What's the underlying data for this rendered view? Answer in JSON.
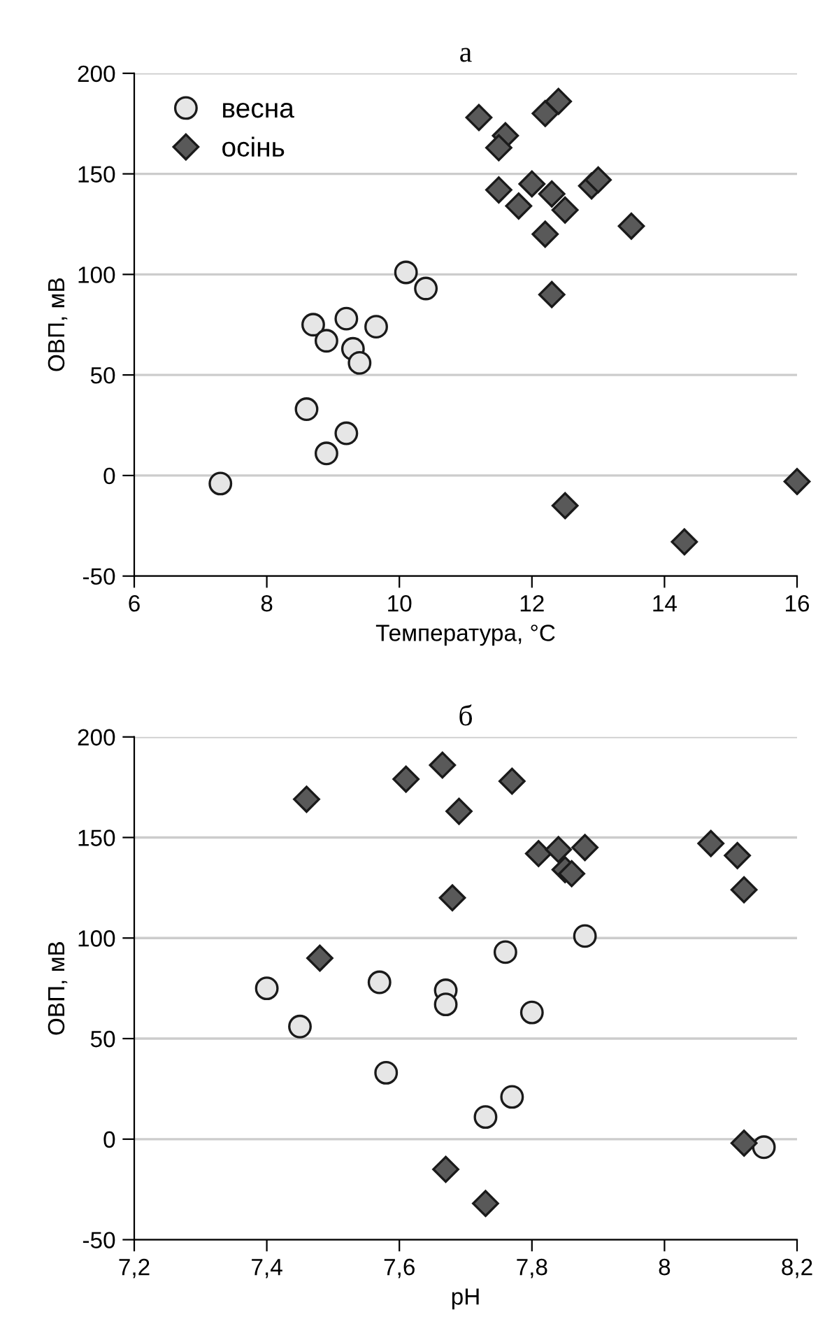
{
  "chart_data": [
    {
      "type": "scatter",
      "title": "а",
      "xlabel": "Температура, °C",
      "ylabel": "ОВП, мВ",
      "xlim": [
        6,
        16
      ],
      "xticks": [
        6,
        8,
        10,
        12,
        14,
        16
      ],
      "ylim": [
        -50,
        200
      ],
      "yticks": [
        -50,
        0,
        50,
        100,
        150,
        200
      ],
      "grid": "y",
      "legend": "top left",
      "series": [
        {
          "name": "весна",
          "color": "#e6e6e6",
          "marker": "circle",
          "x": [
            7.3,
            8.6,
            8.7,
            8.9,
            8.9,
            9.2,
            9.2,
            9.3,
            9.4,
            9.65,
            10.1,
            10.4
          ],
          "values": [
            -4,
            33,
            75,
            67,
            11,
            78,
            21,
            63,
            56,
            74,
            101,
            93
          ]
        },
        {
          "name": "осінь",
          "color": "#595959",
          "marker": "diamond",
          "x": [
            11.2,
            11.6,
            11.5,
            11.5,
            11.8,
            12.0,
            12.2,
            12.4,
            12.3,
            12.5,
            12.2,
            12.9,
            13.0,
            13.5,
            12.3,
            12.5,
            14.3,
            16.0
          ],
          "values": [
            178,
            169,
            163,
            142,
            134,
            145,
            180,
            186,
            140,
            132,
            120,
            144,
            147,
            124,
            90,
            -15,
            -33,
            -3
          ]
        }
      ]
    },
    {
      "type": "scatter",
      "title": "б",
      "xlabel": "pH",
      "ylabel": "ОВП, мВ",
      "xlim": [
        7.2,
        8.2
      ],
      "xticks": [
        {
          "value": 7.2,
          "label": "7,2"
        },
        {
          "value": 7.4,
          "label": "7,4"
        },
        {
          "value": 7.6,
          "label": "7,6"
        },
        {
          "value": 7.8,
          "label": "7,8"
        },
        {
          "value": 8,
          "label": "8"
        },
        {
          "value": 8.2,
          "label": "8,2"
        }
      ],
      "ylim": [
        -50,
        200
      ],
      "yticks": [
        -50,
        0,
        50,
        100,
        150,
        200
      ],
      "grid": "y",
      "series": [
        {
          "color": "#e6e6e6",
          "marker": "circle",
          "x": [
            7.4,
            7.45,
            7.57,
            7.58,
            7.67,
            7.67,
            7.73,
            7.76,
            7.77,
            7.8,
            7.88,
            8.15
          ],
          "values": [
            75,
            56,
            78,
            33,
            74,
            67,
            11,
            93,
            21,
            63,
            101,
            -4
          ]
        },
        {
          "color": "#595959",
          "marker": "diamond",
          "x": [
            7.46,
            7.48,
            7.61,
            7.665,
            7.69,
            7.68,
            7.77,
            7.67,
            7.73,
            7.81,
            7.84,
            7.85,
            7.86,
            7.88,
            8.07,
            8.11,
            8.12,
            8.12
          ],
          "values": [
            169,
            90,
            179,
            186,
            163,
            120,
            178,
            -15,
            -32,
            142,
            144,
            134,
            132,
            145,
            147,
            141,
            124,
            -2
          ]
        }
      ]
    }
  ]
}
